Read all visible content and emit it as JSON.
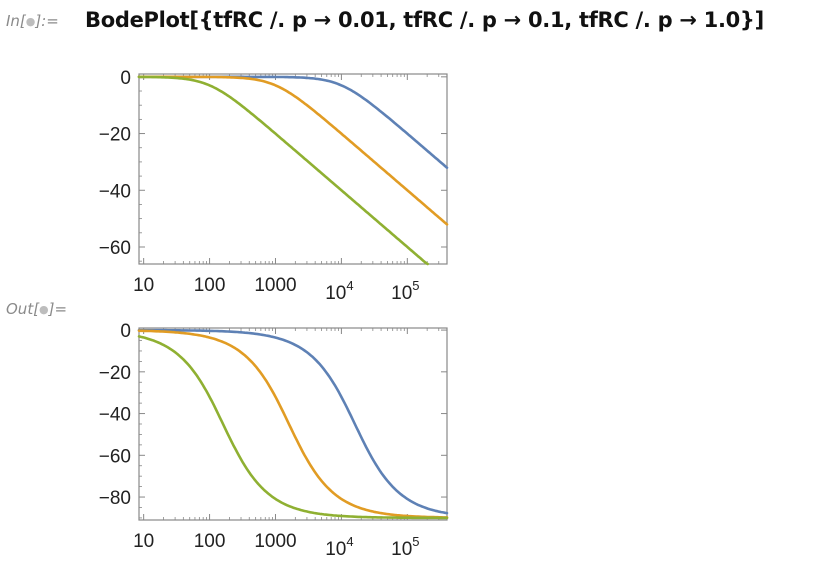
{
  "cell": {
    "in_label": {
      "prefix": "In[",
      "suffix": "]:="
    },
    "out_label": {
      "prefix": "Out[",
      "suffix": "]="
    },
    "dot": "●",
    "input_code": "BodePlot[{tfRC /. p → 0.01, tfRC /. p → 0.1, tfRC /. p → 1.0}]"
  },
  "colors": {
    "series": [
      "#5e81b5",
      "#e19c24",
      "#8fb032"
    ],
    "frame": "#888888",
    "background": "#ffffff"
  },
  "chart_data": [
    {
      "type": "line",
      "x_scale": "log",
      "xlim": [
        8.5,
        400000
      ],
      "ylim": [
        -66,
        1
      ],
      "xticks": [
        {
          "label": "10"
        },
        {
          "label": "100"
        },
        {
          "label": "1000"
        },
        {
          "base": "10",
          "exp": "4"
        },
        {
          "base": "10",
          "exp": "5"
        }
      ],
      "yticks": [
        "0",
        "−20",
        "−40",
        "−60"
      ],
      "yticks_values": [
        0,
        -20,
        -40,
        -60
      ],
      "xticks_values": [
        10,
        100,
        1000,
        10000,
        100000
      ],
      "grid": false,
      "series": [
        {
          "cutoff": 10000,
          "x": [
            8.5,
            1000,
            5000,
            10000,
            50000,
            100000,
            400000
          ],
          "y": [
            0,
            -0.04,
            -0.97,
            -3.01,
            -14.15,
            -20.04,
            -32.04
          ]
        },
        {
          "cutoff": 1000,
          "x": [
            8.5,
            100,
            500,
            1000,
            5000,
            10000,
            100000,
            400000
          ],
          "y": [
            0,
            -0.04,
            -0.97,
            -3.01,
            -14.15,
            -20.04,
            -40.0,
            -52.04
          ]
        },
        {
          "cutoff": 100,
          "x": [
            8.5,
            10,
            50,
            100,
            500,
            1000,
            10000,
            100000,
            400000
          ],
          "y": [
            -0.03,
            -0.04,
            -0.97,
            -3.01,
            -14.15,
            -20.04,
            -40.0,
            -60.0,
            -72.04
          ]
        }
      ]
    },
    {
      "type": "line",
      "x_scale": "log",
      "xlim": [
        8.5,
        400000
      ],
      "ylim": [
        -91,
        1
      ],
      "xticks": [
        {
          "label": "10"
        },
        {
          "label": "100"
        },
        {
          "label": "1000"
        },
        {
          "base": "10",
          "exp": "4"
        },
        {
          "base": "10",
          "exp": "5"
        }
      ],
      "yticks": [
        "0",
        "−20",
        "−40",
        "−60",
        "−80"
      ],
      "yticks_values": [
        0,
        -20,
        -40,
        -60,
        -80
      ],
      "xticks_values": [
        10,
        100,
        1000,
        10000,
        100000
      ],
      "grid": false,
      "series": [
        {
          "cutoff": 16000,
          "x": [
            8.5,
            1000,
            5000,
            16000,
            50000,
            100000,
            400000
          ],
          "y": [
            -0.03,
            -3.6,
            -17.4,
            -45,
            -72.3,
            -80.9,
            -87.7
          ]
        },
        {
          "cutoff": 1600,
          "x": [
            8.5,
            100,
            500,
            1600,
            5000,
            10000,
            100000,
            400000
          ],
          "y": [
            -0.3,
            -3.6,
            -17.4,
            -45,
            -72.3,
            -80.9,
            -89.1,
            -89.8
          ]
        },
        {
          "cutoff": 160,
          "x": [
            8.5,
            10,
            50,
            160,
            500,
            1000,
            10000,
            100000,
            400000
          ],
          "y": [
            -3.0,
            -3.6,
            -17.4,
            -45,
            -72.3,
            -80.9,
            -89.1,
            -89.9,
            -90.0
          ]
        }
      ]
    }
  ]
}
